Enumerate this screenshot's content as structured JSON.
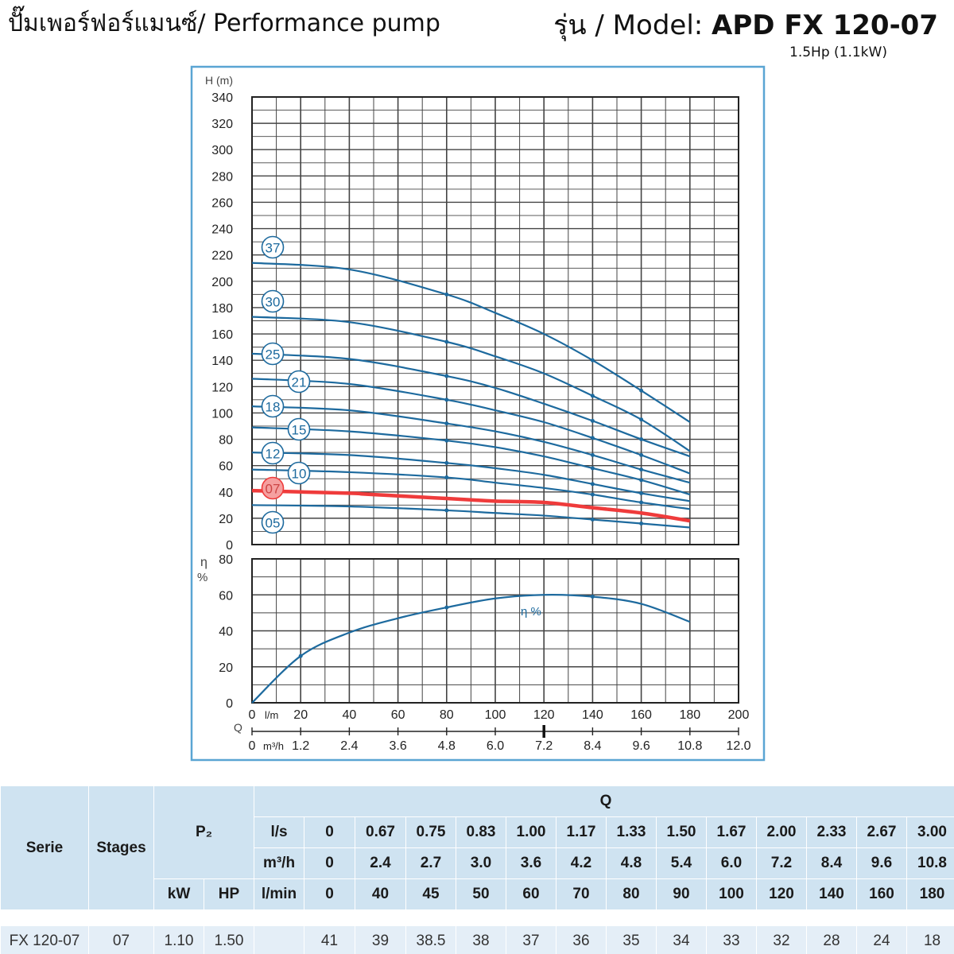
{
  "header": {
    "title": "ปั๊มเพอร์ฟอร์แมนซ์/ Performance pump",
    "model_prefix": "รุ่น / Model: ",
    "model_name": "APD FX 120-07",
    "power": "1.5Hp (1.1kW)"
  },
  "colors": {
    "curve": "#1d6a9e",
    "highlight": "#ef3b3b",
    "frame": "#5aa5d3",
    "table_header": "#cfe3f1",
    "table_row": "#e4eef7"
  },
  "chart_data": [
    {
      "type": "line",
      "title": "",
      "ylabel": "H (m)",
      "xlabel": "Q",
      "ylim": [
        0,
        340
      ],
      "xlim": [
        0,
        200
      ],
      "y_ticks": [
        0,
        20,
        40,
        60,
        80,
        100,
        120,
        140,
        160,
        180,
        200,
        220,
        240,
        260,
        280,
        300,
        320,
        340
      ],
      "x_ticks": [
        0,
        20,
        40,
        60,
        80,
        100,
        120,
        140,
        160,
        180,
        200
      ],
      "x_tick_labels": [
        "0",
        "20",
        "40",
        "60",
        "80",
        "100",
        "120",
        "140",
        "160",
        "180",
        "200"
      ],
      "x_unit": "l/m",
      "x2_ticks": [
        "0",
        "1.2",
        "2.4",
        "3.6",
        "4.8",
        "6.0",
        "7.2",
        "8.4",
        "9.6",
        "10.8",
        "12.0"
      ],
      "x2_unit": "m³/h",
      "grid": true,
      "highlight_series": "07",
      "series": [
        {
          "name": "37",
          "x": [
            0,
            40,
            80,
            100,
            120,
            140,
            160,
            180
          ],
          "values": [
            214,
            209,
            190,
            176,
            160,
            140,
            117,
            93
          ]
        },
        {
          "name": "30",
          "x": [
            0,
            40,
            80,
            100,
            120,
            140,
            160,
            180
          ],
          "values": [
            173,
            169,
            154,
            143,
            130,
            113,
            95,
            71
          ]
        },
        {
          "name": "25",
          "x": [
            0,
            40,
            80,
            100,
            120,
            140,
            160,
            180
          ],
          "values": [
            145,
            141,
            128,
            119,
            107,
            94,
            80,
            67
          ]
        },
        {
          "name": "21",
          "x": [
            0,
            40,
            80,
            100,
            120,
            140,
            160,
            180
          ],
          "values": [
            126,
            122,
            110,
            102,
            93,
            81,
            68,
            54
          ]
        },
        {
          "name": "18",
          "x": [
            0,
            40,
            80,
            100,
            120,
            140,
            160,
            180
          ],
          "values": [
            105,
            102,
            92,
            86,
            78,
            68,
            57,
            47
          ]
        },
        {
          "name": "15",
          "x": [
            0,
            40,
            80,
            100,
            120,
            140,
            160,
            180
          ],
          "values": [
            89,
            86,
            79,
            74,
            67,
            58,
            49,
            38
          ]
        },
        {
          "name": "12",
          "x": [
            0,
            40,
            80,
            100,
            120,
            140,
            160,
            180
          ],
          "values": [
            70,
            68,
            62,
            58,
            53,
            46,
            39,
            33
          ]
        },
        {
          "name": "10",
          "x": [
            0,
            40,
            80,
            100,
            120,
            140,
            160,
            180
          ],
          "values": [
            57,
            55,
            51,
            47,
            43,
            38,
            32,
            27
          ]
        },
        {
          "name": "07",
          "x": [
            0,
            40,
            45,
            50,
            60,
            70,
            80,
            90,
            100,
            120,
            140,
            160,
            180
          ],
          "values": [
            41,
            39,
            38.5,
            38,
            37,
            36,
            35,
            34,
            33,
            32,
            28,
            24,
            18
          ]
        },
        {
          "name": "05",
          "x": [
            0,
            40,
            80,
            100,
            120,
            140,
            160,
            180
          ],
          "values": [
            30,
            29,
            26,
            24,
            22,
            19,
            16,
            13
          ]
        }
      ]
    },
    {
      "type": "line",
      "ylabel": "η %",
      "ylim": [
        0,
        80
      ],
      "y_ticks": [
        0,
        20,
        40,
        60,
        80
      ],
      "series": [
        {
          "name": "η %",
          "x": [
            0,
            20,
            40,
            60,
            80,
            100,
            120,
            140,
            160,
            180
          ],
          "values": [
            0,
            26,
            39,
            47,
            53,
            58,
            60,
            59,
            55,
            45
          ]
        }
      ]
    }
  ],
  "table": {
    "serie_label": "Serie",
    "stages_label": "Stages",
    "p2_label": "P₂",
    "q_label": "Q",
    "kw_label": "kW",
    "hp_label": "HP",
    "units": [
      "l/s",
      "m³/h",
      "l/min"
    ],
    "ls": [
      "0",
      "0.67",
      "0.75",
      "0.83",
      "1.00",
      "1.17",
      "1.33",
      "1.50",
      "1.67",
      "2.00",
      "2.33",
      "2.67",
      "3.00"
    ],
    "m3h": [
      "0",
      "2.4",
      "2.7",
      "3.0",
      "3.6",
      "4.2",
      "4.8",
      "5.4",
      "6.0",
      "7.2",
      "8.4",
      "9.6",
      "10.8"
    ],
    "lmin": [
      "0",
      "40",
      "45",
      "50",
      "60",
      "70",
      "80",
      "90",
      "100",
      "120",
      "140",
      "160",
      "180"
    ],
    "row": {
      "serie": "FX 120-07",
      "stages": "07",
      "kw": "1.10",
      "hp": "1.50",
      "values": [
        "41",
        "39",
        "38.5",
        "38",
        "37",
        "36",
        "35",
        "34",
        "33",
        "32",
        "28",
        "24",
        "18"
      ]
    }
  }
}
